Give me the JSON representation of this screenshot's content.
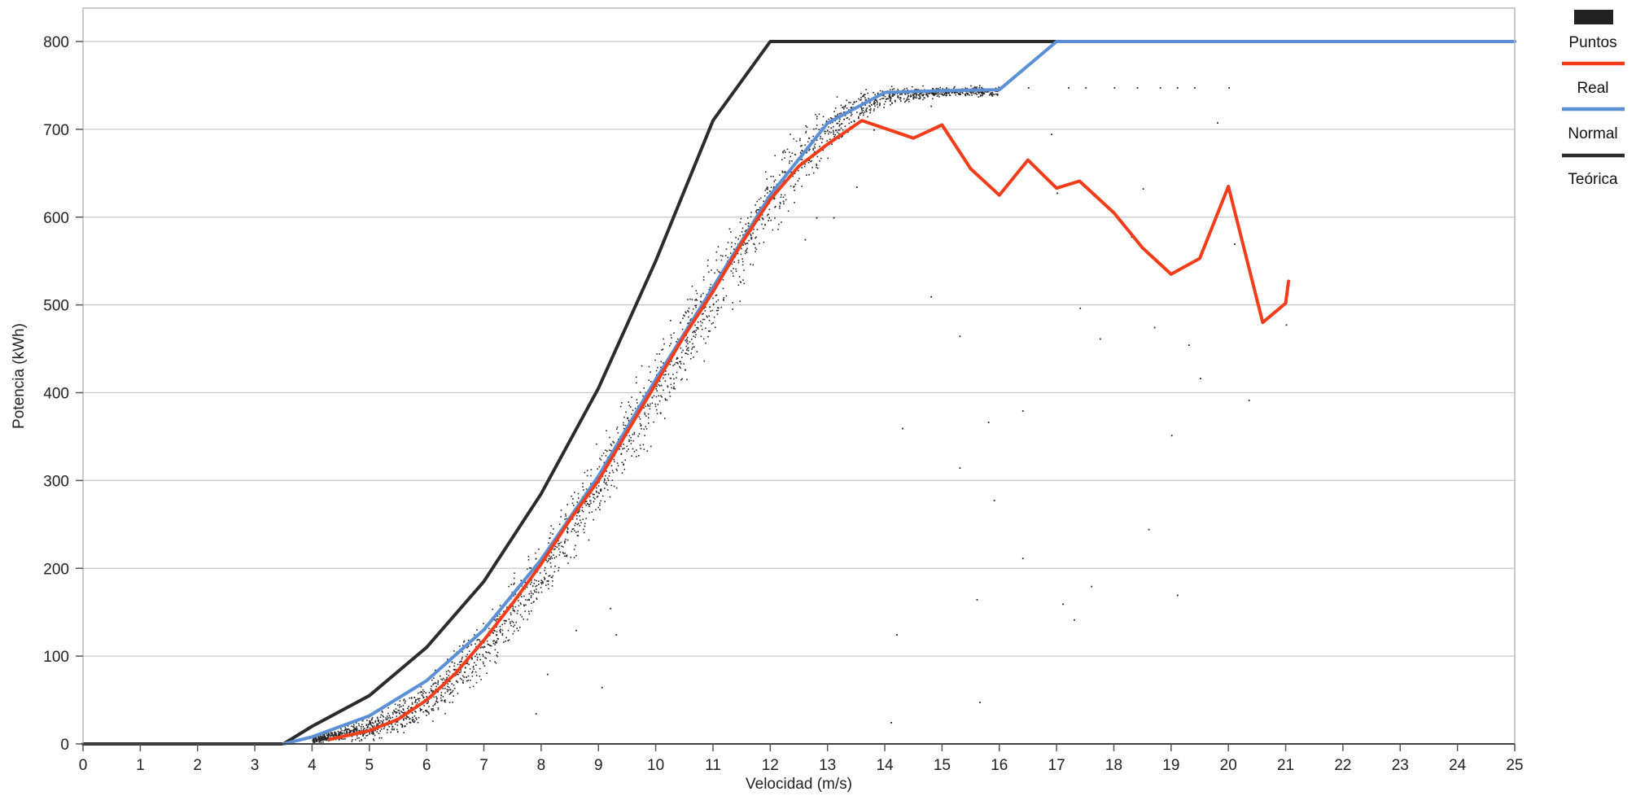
{
  "chart_data": {
    "type": "line",
    "title": "",
    "xlabel": "Velocidad (m/s)",
    "ylabel": "Potencia (kWh)",
    "xlim": [
      0,
      25
    ],
    "ylim": [
      0,
      800
    ],
    "x_ticks": [
      0,
      1,
      2,
      3,
      4,
      5,
      6,
      7,
      8,
      9,
      10,
      11,
      12,
      13,
      14,
      15,
      16,
      17,
      18,
      19,
      20,
      21,
      22,
      23,
      24,
      25
    ],
    "y_ticks": [
      0,
      100,
      200,
      300,
      400,
      500,
      600,
      700,
      800
    ],
    "x_tick_labels": [
      "0",
      "1",
      "2",
      "3",
      "4",
      "5",
      "6",
      "7",
      "8",
      "9",
      "10",
      "11",
      "12",
      "13",
      "14",
      "15",
      "16",
      "17",
      "18",
      "19",
      "20",
      "21",
      "22",
      "23",
      "24",
      "25"
    ],
    "y_tick_labels": [
      "0",
      "100",
      "200",
      "300",
      "400",
      "500",
      "600",
      "700",
      "800"
    ],
    "grid": true,
    "legend_position": "right",
    "legend": [
      "Puntos",
      "Real",
      "Normal",
      "Teórica"
    ],
    "series": [
      {
        "name": "Teórica",
        "kind": "line",
        "color": "#2b2b2b",
        "points": [
          [
            0,
            0
          ],
          [
            3.5,
            0
          ],
          [
            4,
            20
          ],
          [
            5,
            55
          ],
          [
            6,
            110
          ],
          [
            7,
            185
          ],
          [
            8,
            285
          ],
          [
            9,
            405
          ],
          [
            10,
            550
          ],
          [
            11,
            710
          ],
          [
            12,
            800
          ],
          [
            25,
            800
          ]
        ]
      },
      {
        "name": "Normal",
        "kind": "line",
        "color": "#5b8fd6",
        "points": [
          [
            3.5,
            0
          ],
          [
            4,
            8
          ],
          [
            5,
            32
          ],
          [
            6,
            72
          ],
          [
            7,
            130
          ],
          [
            8,
            210
          ],
          [
            9,
            305
          ],
          [
            10,
            415
          ],
          [
            11,
            520
          ],
          [
            12,
            625
          ],
          [
            13,
            707
          ],
          [
            14,
            742
          ],
          [
            15,
            744
          ],
          [
            16,
            745
          ],
          [
            17,
            800
          ],
          [
            25,
            800
          ]
        ]
      },
      {
        "name": "Real",
        "kind": "line",
        "color": "#f23c1a",
        "points": [
          [
            4.3,
            5
          ],
          [
            5,
            15
          ],
          [
            5.5,
            28
          ],
          [
            6,
            50
          ],
          [
            6.5,
            80
          ],
          [
            7,
            118
          ],
          [
            7.5,
            160
          ],
          [
            8,
            205
          ],
          [
            8.5,
            255
          ],
          [
            9,
            300
          ],
          [
            9.5,
            355
          ],
          [
            10,
            410
          ],
          [
            10.5,
            465
          ],
          [
            11,
            515
          ],
          [
            11.5,
            570
          ],
          [
            12,
            620
          ],
          [
            12.5,
            658
          ],
          [
            13,
            683
          ],
          [
            13.6,
            710
          ],
          [
            14.5,
            690
          ],
          [
            15,
            705
          ],
          [
            15.5,
            655
          ],
          [
            16,
            625
          ],
          [
            16.5,
            665
          ],
          [
            17,
            633
          ],
          [
            17.4,
            641
          ],
          [
            18,
            605
          ],
          [
            18.5,
            565
          ],
          [
            19,
            535
          ],
          [
            19.5,
            553
          ],
          [
            20,
            635
          ],
          [
            20.6,
            480
          ],
          [
            21,
            502
          ],
          [
            21.05,
            527
          ]
        ]
      },
      {
        "name": "Puntos",
        "kind": "scatter",
        "color": "#222222",
        "band": [
          [
            4,
            0,
            12
          ],
          [
            4.5,
            0,
            22
          ],
          [
            5,
            0,
            38
          ],
          [
            5.5,
            4,
            55
          ],
          [
            6,
            15,
            85
          ],
          [
            6.5,
            35,
            118
          ],
          [
            7,
            65,
            155
          ],
          [
            7.5,
            100,
            200
          ],
          [
            8,
            145,
            245
          ],
          [
            8.5,
            190,
            300
          ],
          [
            9,
            240,
            355
          ],
          [
            9.5,
            290,
            410
          ],
          [
            10,
            340,
            470
          ],
          [
            10.5,
            395,
            525
          ],
          [
            11,
            445,
            575
          ],
          [
            11.5,
            500,
            630
          ],
          [
            12,
            560,
            680
          ],
          [
            12.5,
            610,
            720
          ],
          [
            13,
            660,
            745
          ],
          [
            13.5,
            700,
            750
          ],
          [
            14,
            725,
            752
          ],
          [
            15,
            735,
            752
          ],
          [
            16,
            735,
            752
          ]
        ],
        "outliers": [
          [
            9.2,
            155
          ],
          [
            9.3,
            125
          ],
          [
            9.05,
            65
          ],
          [
            8.6,
            130
          ],
          [
            8.1,
            80
          ],
          [
            7.9,
            35
          ],
          [
            14.2,
            125
          ],
          [
            14.1,
            25
          ],
          [
            14.3,
            360
          ],
          [
            14.8,
            510
          ],
          [
            15.3,
            465
          ],
          [
            15.3,
            315
          ],
          [
            15.6,
            165
          ],
          [
            15.65,
            48
          ],
          [
            15.8,
            367
          ],
          [
            15.9,
            278
          ],
          [
            16.4,
            380
          ],
          [
            16.4,
            212
          ],
          [
            16.9,
            695
          ],
          [
            17.0,
            628
          ],
          [
            17.1,
            160
          ],
          [
            17.3,
            142
          ],
          [
            17.4,
            497
          ],
          [
            17.6,
            180
          ],
          [
            17.75,
            462
          ],
          [
            18.3,
            578
          ],
          [
            18.5,
            633
          ],
          [
            18.6,
            245
          ],
          [
            18.7,
            475
          ],
          [
            19.0,
            352
          ],
          [
            19.1,
            170
          ],
          [
            19.3,
            455
          ],
          [
            19.5,
            417
          ],
          [
            19.8,
            708
          ],
          [
            20.1,
            570
          ],
          [
            20.35,
            392
          ],
          [
            21.0,
            478
          ],
          [
            13.1,
            600
          ],
          [
            12.8,
            600
          ],
          [
            12.6,
            575
          ],
          [
            12.9,
            690
          ],
          [
            13.5,
            635
          ],
          [
            13.8,
            700
          ],
          [
            14.8,
            727
          ],
          [
            16.5,
            748
          ],
          [
            17.2,
            748
          ],
          [
            17.5,
            748
          ],
          [
            18.0,
            748
          ],
          [
            18.4,
            748
          ],
          [
            18.8,
            748
          ],
          [
            19.1,
            748
          ],
          [
            19.4,
            748
          ],
          [
            20.0,
            748
          ]
        ]
      }
    ]
  }
}
